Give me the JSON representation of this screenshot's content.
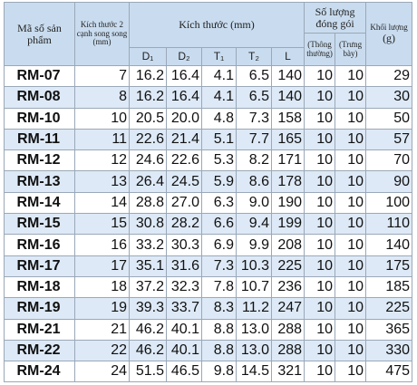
{
  "header": {
    "code": "Mã số sản phẩm",
    "size": "Kích thước 2 cạnh song song (mm)",
    "dims": "Kích thước (mm)",
    "dim_cols": [
      "D₁",
      "D₂",
      "T₁",
      "T₂",
      "L"
    ],
    "pack": "Số lượng đóng gói",
    "pack_cols": [
      "(Thông thường)",
      "(Trưng bày)"
    ],
    "weight": "Khối lượng",
    "weight_unit": "(g)"
  },
  "table": {
    "rows": [
      [
        "RM-07",
        "7",
        "16.2",
        "16.4",
        "4.1",
        "6.5",
        "140",
        "10",
        "10",
        "29"
      ],
      [
        "RM-08",
        "8",
        "16.2",
        "16.4",
        "4.1",
        "6.5",
        "140",
        "10",
        "10",
        "30"
      ],
      [
        "RM-10",
        "10",
        "20.5",
        "20.0",
        "4.8",
        "7.3",
        "158",
        "10",
        "10",
        "50"
      ],
      [
        "RM-11",
        "11",
        "22.6",
        "21.4",
        "5.1",
        "7.7",
        "165",
        "10",
        "10",
        "57"
      ],
      [
        "RM-12",
        "12",
        "24.6",
        "22.6",
        "5.3",
        "8.2",
        "171",
        "10",
        "10",
        "70"
      ],
      [
        "RM-13",
        "13",
        "26.4",
        "24.5",
        "5.9",
        "8.6",
        "178",
        "10",
        "10",
        "90"
      ],
      [
        "RM-14",
        "14",
        "28.8",
        "27.0",
        "6.3",
        "9.0",
        "190",
        "10",
        "10",
        "100"
      ],
      [
        "RM-15",
        "15",
        "30.8",
        "28.2",
        "6.6",
        "9.4",
        "199",
        "10",
        "10",
        "110"
      ],
      [
        "RM-16",
        "16",
        "33.2",
        "30.3",
        "6.9",
        "9.9",
        "208",
        "10",
        "10",
        "140"
      ],
      [
        "RM-17",
        "17",
        "35.1",
        "31.6",
        "7.3",
        "10.3",
        "225",
        "10",
        "10",
        "175"
      ],
      [
        "RM-18",
        "18",
        "37.2",
        "32.3",
        "7.8",
        "10.7",
        "236",
        "10",
        "10",
        "185"
      ],
      [
        "RM-19",
        "19",
        "39.3",
        "33.7",
        "8.3",
        "11.2",
        "247",
        "10",
        "10",
        "225"
      ],
      [
        "RM-21",
        "21",
        "46.2",
        "40.1",
        "8.8",
        "13.0",
        "288",
        "10",
        "10",
        "365"
      ],
      [
        "RM-22",
        "22",
        "46.2",
        "40.1",
        "8.8",
        "13.0",
        "288",
        "10",
        "10",
        "330"
      ],
      [
        "RM-24",
        "24",
        "51.5",
        "46.5",
        "9.8",
        "14.5",
        "321",
        "10",
        "10",
        "475"
      ]
    ]
  }
}
